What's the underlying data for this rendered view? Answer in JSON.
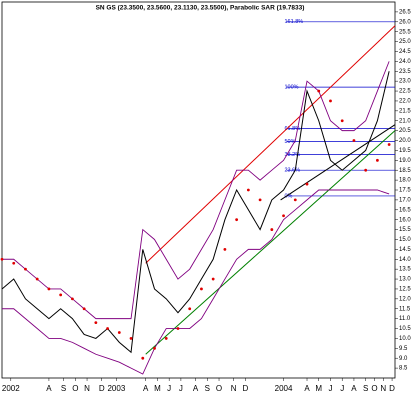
{
  "chart_data": {
    "type": "line",
    "title": "SN GS (23.3500, 23.5600, 23.1130, 23.5500), Parabolic SAR (19.7833)",
    "x": [
      0,
      4,
      8,
      12,
      16,
      20,
      24,
      28,
      32,
      36,
      40,
      44,
      48,
      52,
      56,
      60,
      64,
      68,
      72,
      76,
      80,
      84,
      88,
      92,
      96,
      100,
      104,
      108,
      112,
      116,
      120,
      124,
      128,
      132
    ],
    "xlim": [
      0,
      134
    ],
    "xticks": [
      {
        "value": 3,
        "label": "2002"
      },
      {
        "value": 16,
        "label": "A"
      },
      {
        "value": 21,
        "label": "S"
      },
      {
        "value": 25,
        "label": "O"
      },
      {
        "value": 29,
        "label": "N"
      },
      {
        "value": 34,
        "label": "D"
      },
      {
        "value": 39,
        "label": "2003"
      },
      {
        "value": 49,
        "label": "A"
      },
      {
        "value": 53,
        "label": "M"
      },
      {
        "value": 57,
        "label": "J"
      },
      {
        "value": 61,
        "label": "J"
      },
      {
        "value": 66,
        "label": "A"
      },
      {
        "value": 70,
        "label": "S"
      },
      {
        "value": 74,
        "label": "O"
      },
      {
        "value": 79,
        "label": "N"
      },
      {
        "value": 83,
        "label": "D"
      },
      {
        "value": 96,
        "label": "2004"
      },
      {
        "value": 104,
        "label": "A"
      },
      {
        "value": 108,
        "label": "M"
      },
      {
        "value": 112,
        "label": "J"
      },
      {
        "value": 116,
        "label": "J"
      },
      {
        "value": 120,
        "label": "A"
      },
      {
        "value": 124,
        "label": "S"
      },
      {
        "value": 127,
        "label": "O"
      },
      {
        "value": 130,
        "label": "N"
      },
      {
        "value": 133,
        "label": "D"
      }
    ],
    "ylim": [
      8,
      27
    ],
    "yticks": [
      8.5,
      {
        "value": 9,
        "label": "9.0"
      },
      9.5,
      {
        "value": 10,
        "label": "10.0"
      },
      10.5,
      {
        "value": 11,
        "label": "11.0"
      },
      11.5,
      {
        "value": 12,
        "label": "12.0"
      },
      12.5,
      {
        "value": 13,
        "label": "13.0"
      },
      13.5,
      {
        "value": 14,
        "label": "14.0"
      },
      14.5,
      {
        "value": 15,
        "label": "15.0"
      },
      15.5,
      {
        "value": 16,
        "label": "16.0"
      },
      16.5,
      {
        "value": 17,
        "label": "17.0"
      },
      17.5,
      {
        "value": 18,
        "label": "18.0"
      },
      18.5,
      {
        "value": 19,
        "label": "19.0"
      },
      19.5,
      {
        "value": 20,
        "label": "20.0"
      },
      20.5,
      {
        "value": 21,
        "label": "21.0"
      },
      21.5,
      {
        "value": 22,
        "label": "22.0"
      },
      22.5,
      {
        "value": 23,
        "label": "23.0"
      },
      23.5,
      {
        "value": 24,
        "label": "24.0"
      },
      24.5,
      {
        "value": 25,
        "label": "25.0"
      },
      25.5,
      {
        "value": 26,
        "label": "26.0"
      },
      26.5
    ],
    "series": [
      {
        "color": "#000000",
        "marker": "line",
        "values": [
          12.5,
          13.0,
          12.0,
          11.5,
          11.0,
          11.5,
          11.0,
          10.2,
          10.0,
          10.5,
          9.8,
          9.3,
          14.5,
          12.5,
          12.0,
          11.3,
          12.0,
          13.0,
          14.0,
          16.0,
          17.5,
          16.5,
          15.5,
          17.0,
          17.5,
          18.5,
          22.5,
          21.0,
          19.0,
          18.5,
          19.0,
          19.5,
          21.0,
          23.5
        ]
      },
      {
        "color": "#800080",
        "marker": "line",
        "values": [
          14,
          14,
          13.5,
          13,
          12.5,
          12.5,
          12,
          11.5,
          11,
          11,
          11,
          11,
          15.5,
          15,
          14,
          13,
          13.5,
          14.5,
          15.5,
          17,
          18.5,
          18.5,
          18,
          18.5,
          19,
          20,
          23,
          22.5,
          21,
          20.5,
          20.5,
          21,
          22.5,
          24
        ]
      },
      {
        "color": "#800080",
        "marker": "line",
        "values": [
          11.5,
          11.5,
          11,
          10.5,
          10,
          10,
          9.8,
          9.5,
          9.2,
          9,
          8.8,
          8.5,
          8.2,
          9.5,
          10.5,
          10.5,
          10.5,
          11,
          12,
          13,
          14,
          14.5,
          14.5,
          15,
          16,
          16.5,
          17,
          17.5,
          17.5,
          17.5,
          17.5,
          17.5,
          17.5,
          17.3
        ]
      },
      {
        "color": "#e00000",
        "marker": "dot",
        "values": [
          14,
          13.8,
          13.5,
          13,
          12.5,
          12.2,
          12,
          11.5,
          10.8,
          10.5,
          10.3,
          10,
          9.0,
          9.5,
          10,
          10.5,
          11.5,
          12.5,
          13.0,
          14.5,
          16.0,
          17.5,
          17.0,
          15.5,
          16.2,
          17.0,
          17.8,
          22.5,
          22.0,
          21,
          20.0,
          18.5,
          19.0,
          19.8
        ]
      }
    ],
    "trendlines": [
      {
        "color": "#e00000",
        "x": [
          49,
          134
        ],
        "values": [
          13.8,
          25.8
        ]
      },
      {
        "color": "#008000",
        "x": [
          49,
          134
        ],
        "values": [
          9.2,
          20.5
        ]
      },
      {
        "color": "#000000",
        "x": [
          95,
          134
        ],
        "values": [
          17.0,
          20.8
        ]
      }
    ],
    "fib_start": 97,
    "fib_color": "#0000cc",
    "fib_levels": [
      {
        "label": "161.8%",
        "value": 26.0
      },
      {
        "label": "100%",
        "value": 22.7
      },
      {
        "label": "61.8%",
        "value": 20.6
      },
      {
        "label": "50%",
        "value": 19.95
      },
      {
        "label": "38.2%",
        "value": 19.3
      },
      {
        "label": "23.6%",
        "value": 18.5
      },
      {
        "label": "0%",
        "value": 17.2
      }
    ]
  }
}
